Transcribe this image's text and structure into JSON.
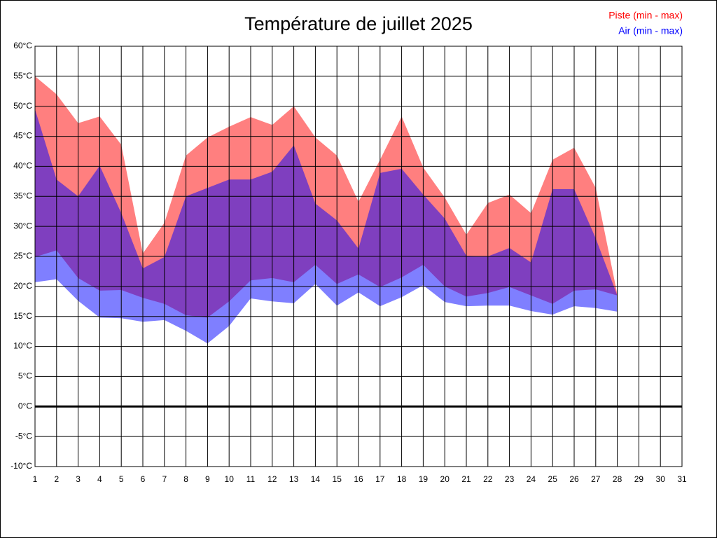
{
  "chart_data": {
    "type": "range-area",
    "title": "Température de juillet 2025",
    "x": [
      1,
      2,
      3,
      4,
      5,
      6,
      7,
      8,
      9,
      10,
      11,
      12,
      13,
      14,
      15,
      16,
      17,
      18,
      19,
      20,
      21,
      22,
      23,
      24,
      25,
      26,
      27,
      28,
      29,
      30,
      31
    ],
    "xlim": [
      1,
      31
    ],
    "xticks": [
      1,
      2,
      3,
      4,
      5,
      6,
      7,
      8,
      9,
      10,
      11,
      12,
      13,
      14,
      15,
      16,
      17,
      18,
      19,
      20,
      21,
      22,
      23,
      24,
      25,
      26,
      27,
      28,
      29,
      30,
      31
    ],
    "ylim": [
      -10,
      60
    ],
    "yticks": [
      {
        "value": -10,
        "label": "-10°C"
      },
      {
        "value": -5,
        "label": "-5°C"
      },
      {
        "value": 0,
        "label": "0°C"
      },
      {
        "value": 5,
        "label": "5°C"
      },
      {
        "value": 10,
        "label": "10°C"
      },
      {
        "value": 15,
        "label": "15°C"
      },
      {
        "value": 20,
        "label": "20°C"
      },
      {
        "value": 25,
        "label": "25°C"
      },
      {
        "value": 30,
        "label": "30°C"
      },
      {
        "value": 35,
        "label": "35°C"
      },
      {
        "value": 40,
        "label": "40°C"
      },
      {
        "value": 45,
        "label": "45°C"
      },
      {
        "value": 50,
        "label": "50°C"
      },
      {
        "value": 55,
        "label": "55°C"
      },
      {
        "value": 60,
        "label": "60°C"
      }
    ],
    "grid": true,
    "zero_line": true,
    "legend": "top-right",
    "series": [
      {
        "name": "Piste (min - max)",
        "color": "#ff0000",
        "min": [
          24.9,
          26,
          21.4,
          19.3,
          19.4,
          18.1,
          17.1,
          15.2,
          14.8,
          17.5,
          21,
          21.4,
          20.7,
          23.6,
          20.4,
          22,
          19.9,
          21.5,
          23.6,
          20,
          18.3,
          18.9,
          19.9,
          18.5,
          17.1,
          19.3,
          19.5,
          18.5,
          null,
          null,
          null
        ],
        "max": [
          55,
          52,
          47.2,
          48.3,
          43.6,
          25.5,
          30.6,
          41.8,
          44.8,
          46.6,
          48.2,
          46.9,
          50,
          44.8,
          41.8,
          34.1,
          41.1,
          48.3,
          39.8,
          34.8,
          28.6,
          33.9,
          35.3,
          32.2,
          41.1,
          43.1,
          36.4,
          18.7,
          null,
          null,
          null
        ]
      },
      {
        "name": "Air (min - max)",
        "color": "#0000ff",
        "min": [
          20.7,
          21.2,
          17.6,
          14.8,
          14.7,
          14.1,
          14.4,
          12.6,
          10.5,
          13.4,
          18,
          17.5,
          17.2,
          20.4,
          16.8,
          19,
          16.7,
          18.2,
          20.2,
          17.4,
          16.7,
          16.8,
          16.8,
          15.9,
          15.3,
          16.7,
          16.4,
          15.8,
          null,
          null,
          null
        ],
        "max": [
          49.5,
          37.8,
          35,
          40.1,
          32.2,
          23,
          24.9,
          35,
          36.4,
          37.8,
          37.8,
          39.1,
          43.5,
          33.8,
          31,
          26.3,
          38.9,
          39.6,
          35.3,
          31.3,
          25.1,
          25,
          26.4,
          24,
          36.2,
          36.2,
          28,
          18.5,
          null,
          null,
          null
        ]
      }
    ]
  }
}
